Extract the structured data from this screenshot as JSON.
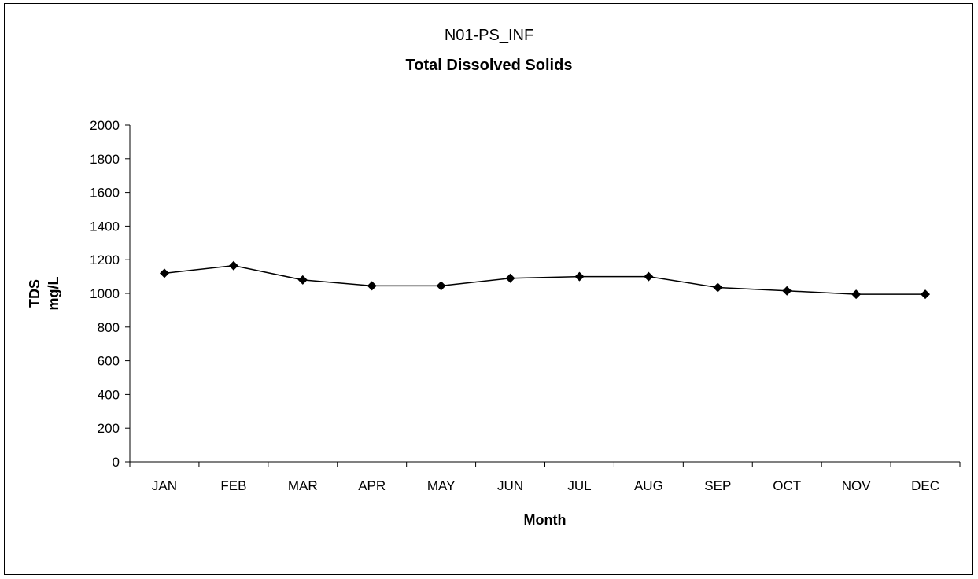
{
  "chart_data": {
    "type": "line",
    "title": "N01-PS_INF",
    "subtitle": "Total Dissolved Solids",
    "xlabel": "Month",
    "ylabel_lines": [
      "TDS",
      "mg/L"
    ],
    "categories": [
      "JAN",
      "FEB",
      "MAR",
      "APR",
      "MAY",
      "JUN",
      "JUL",
      "AUG",
      "SEP",
      "OCT",
      "NOV",
      "DEC"
    ],
    "series": [
      {
        "values": [
          1120,
          1165,
          1080,
          1045,
          1045,
          1090,
          1100,
          1100,
          1035,
          1015,
          995,
          995
        ]
      }
    ],
    "ylim": [
      0,
      2000
    ],
    "yticks": [
      0,
      200,
      400,
      600,
      800,
      1000,
      1200,
      1400,
      1600,
      1800,
      2000
    ],
    "grid": false,
    "legend": "none",
    "colors": {
      "line": "#000000",
      "marker": "#000000"
    }
  }
}
